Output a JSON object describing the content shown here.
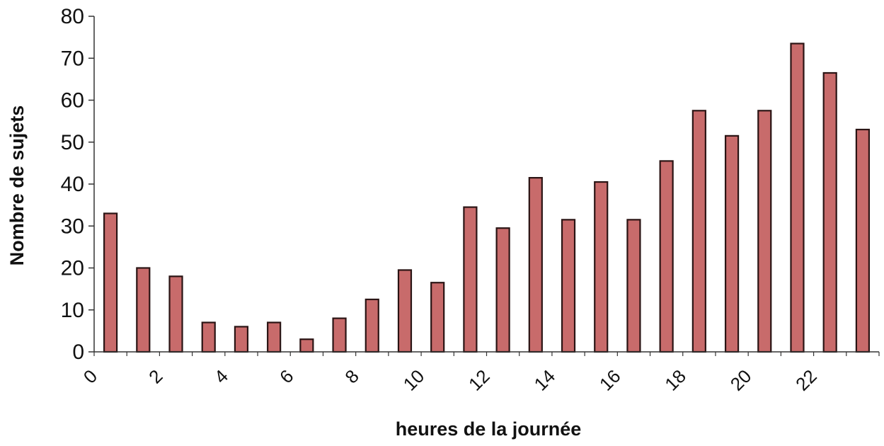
{
  "chart_data": {
    "type": "bar",
    "title": "",
    "xlabel": "heures de la journée",
    "ylabel": "Nombre de sujets",
    "ylim": [
      0,
      80
    ],
    "yticks": [
      "0",
      "10",
      "20",
      "30",
      "40",
      "50",
      "60",
      "70",
      "80"
    ],
    "xticks": [
      "0",
      "2",
      "4",
      "6",
      "8",
      "10",
      "12",
      "14",
      "16",
      "18",
      "20",
      "22"
    ],
    "categories": [
      0,
      1,
      2,
      3,
      4,
      5,
      6,
      7,
      8,
      9,
      10,
      11,
      12,
      13,
      14,
      15,
      16,
      17,
      18,
      19,
      20,
      21,
      22,
      23
    ],
    "values": [
      33,
      20,
      18,
      7,
      6,
      7,
      3,
      8,
      12.5,
      19.5,
      16.5,
      34.5,
      29.5,
      41.5,
      31.5,
      40.5,
      31.5,
      45.5,
      57.5,
      51.5,
      57.5,
      73.5,
      66.5,
      53
    ],
    "grid": false,
    "legend": "none",
    "colors": {
      "bar_fill": "#c86b6b",
      "bar_stroke": "#2a1414",
      "axis": "#333333"
    }
  }
}
